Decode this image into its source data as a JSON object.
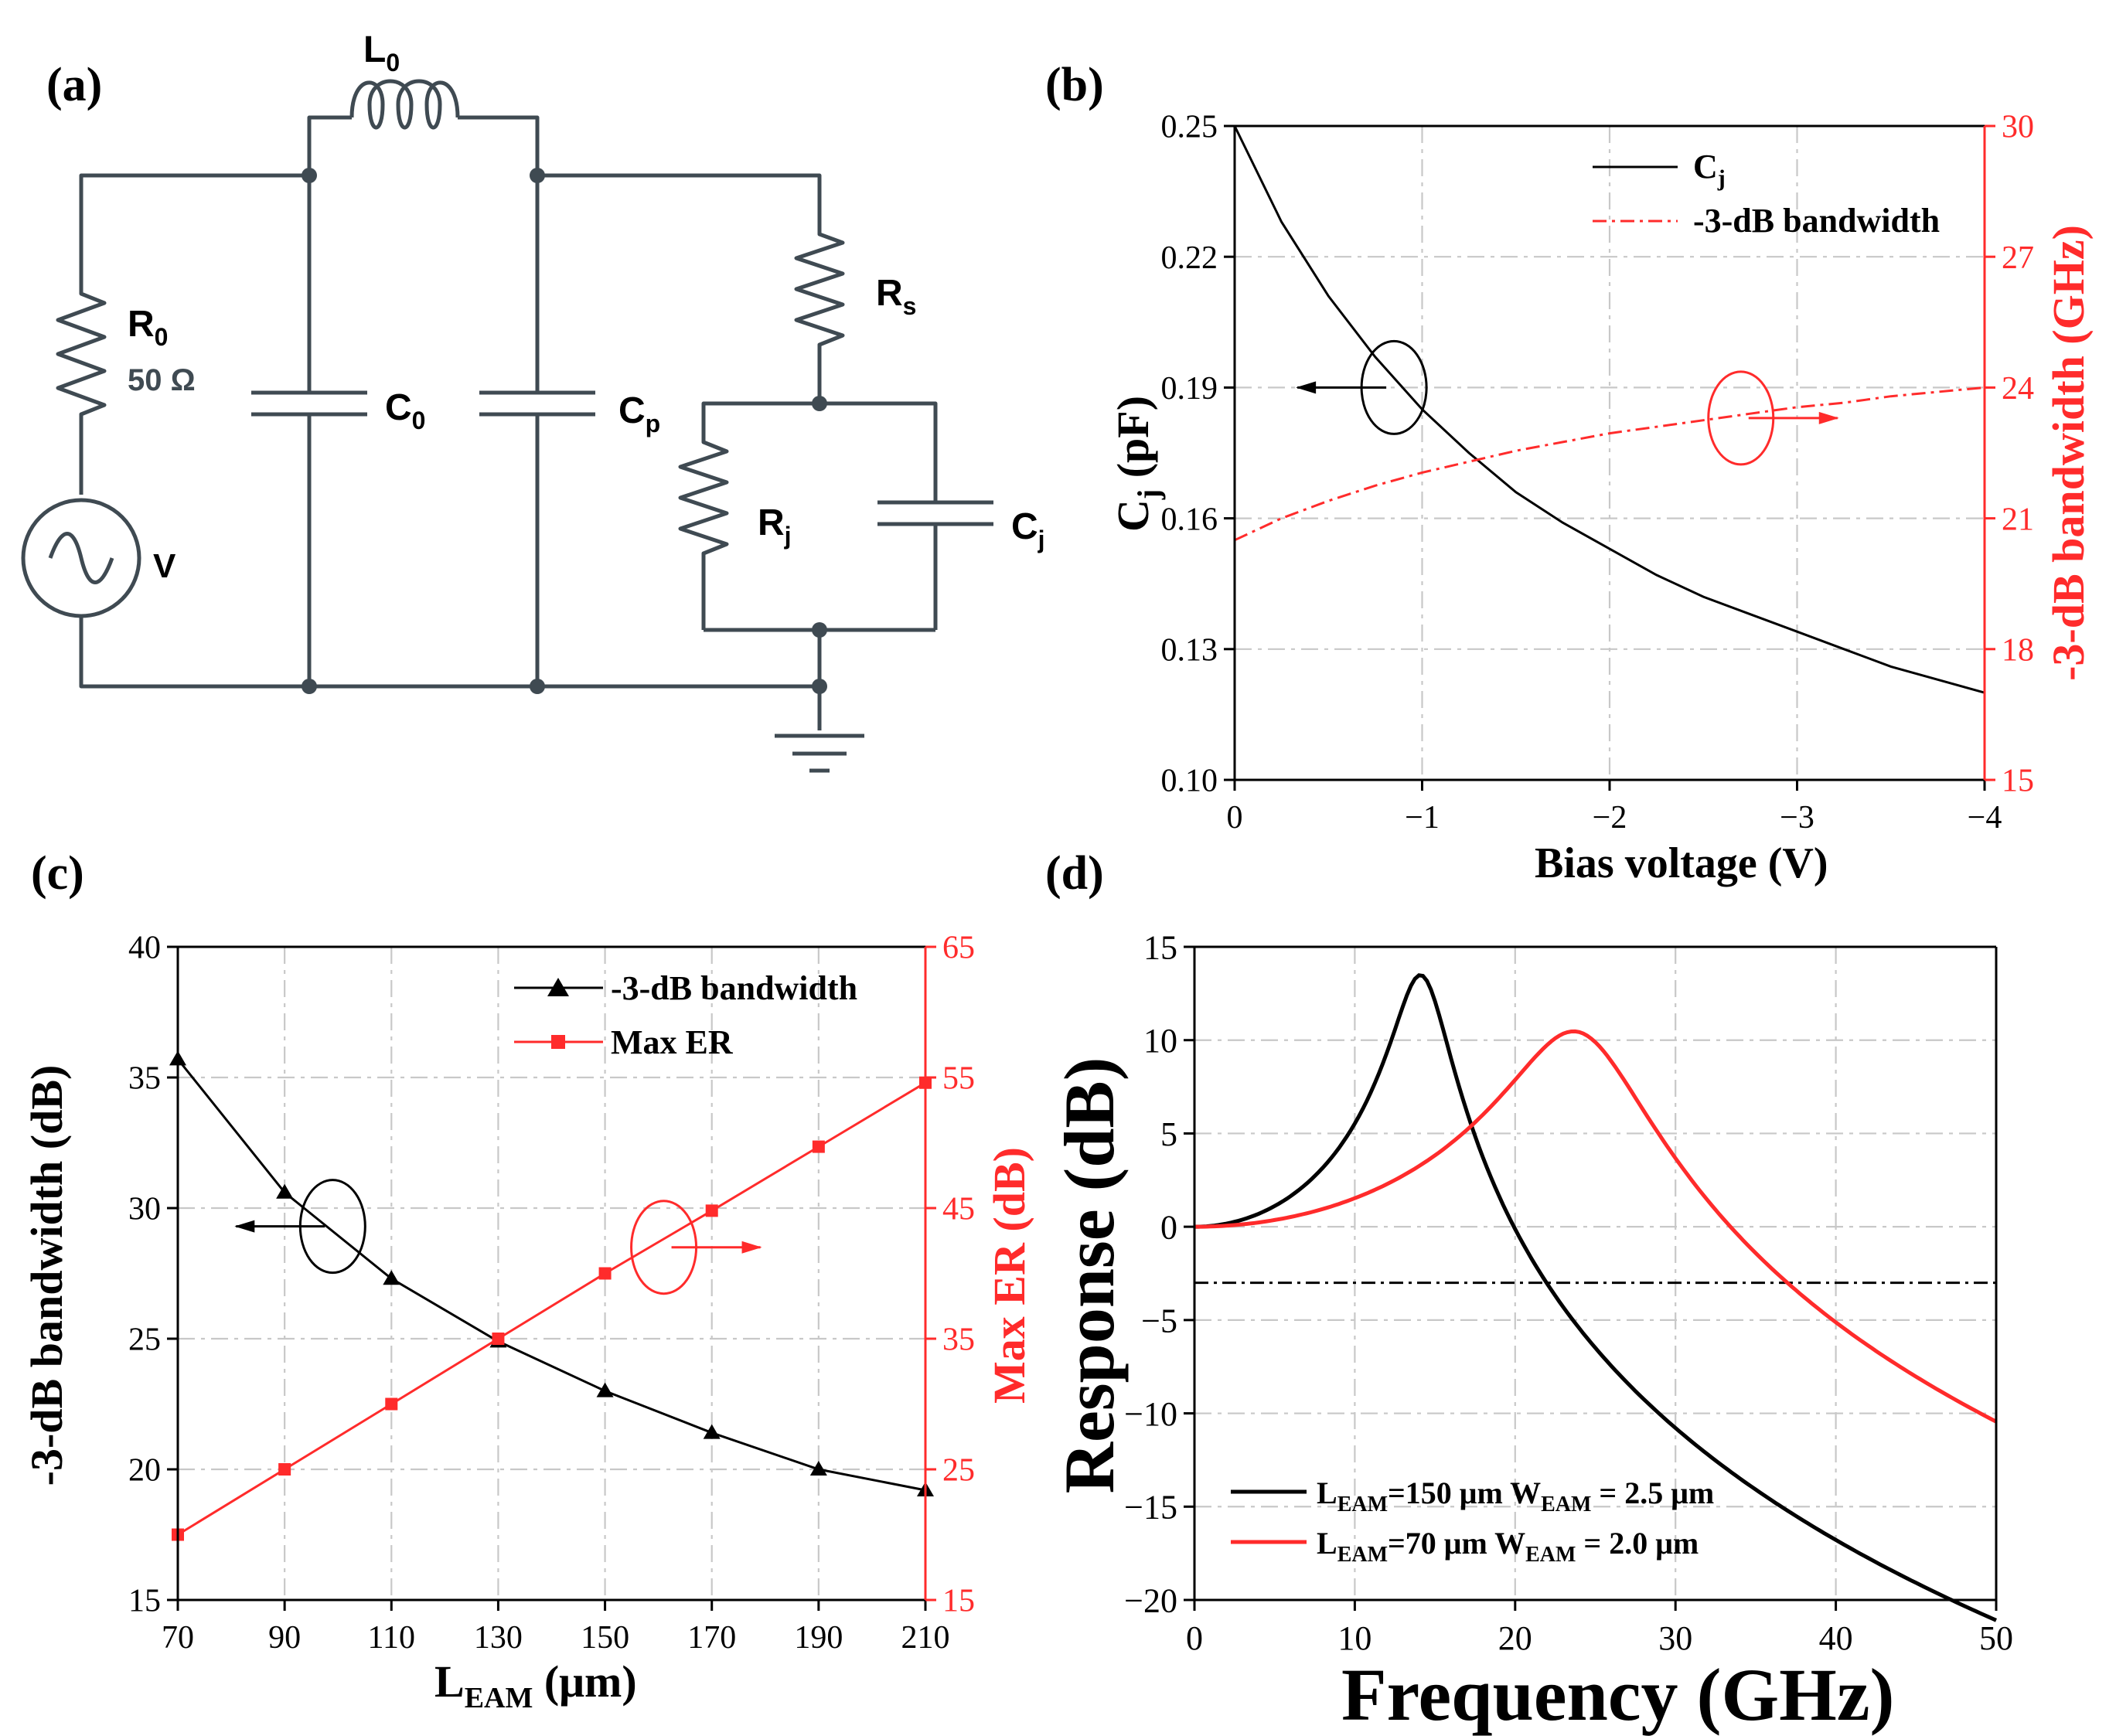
{
  "colors": {
    "black": "#000000",
    "red": "#ff2b2b",
    "wire": "#3f4a52",
    "grid": "#c8c8c8"
  },
  "panels": {
    "a": "(a)",
    "b": "(b)",
    "c": "(c)",
    "d": "(d)"
  },
  "circuit": {
    "L0": {
      "main": "L",
      "sub": "0"
    },
    "R0": {
      "main": "R",
      "sub": "0"
    },
    "R0_value": "50 Ω",
    "V": "V",
    "C0": {
      "main": "C",
      "sub": "0"
    },
    "Cp": {
      "main": "C",
      "sub": "p"
    },
    "Rs": {
      "main": "R",
      "sub": "s"
    },
    "Rj": {
      "main": "R",
      "sub": "j"
    },
    "Cj": {
      "main": "C",
      "sub": "j"
    }
  },
  "chart_data": [
    {
      "id": "b",
      "type": "line",
      "xlabel": "Bias voltage (V)",
      "ylabel": {
        "main": "C",
        "sub": "j",
        "rest": " (pF)"
      },
      "y2label": "-3-dB bandwidth (GHz)",
      "xlim": [
        0,
        -4
      ],
      "ylim": [
        0.1,
        0.25
      ],
      "y2lim": [
        15,
        30
      ],
      "xticks": [
        0,
        -1,
        -2,
        -3,
        -4
      ],
      "xtick_labels": [
        "0",
        "−1",
        "−2",
        "−3",
        "−4"
      ],
      "yticks": [
        0.1,
        0.13,
        0.16,
        0.19,
        0.22,
        0.25
      ],
      "ytick_labels": [
        "0.10",
        "0.13",
        "0.16",
        "0.19",
        "0.22",
        "0.25"
      ],
      "y2ticks": [
        15,
        18,
        21,
        24,
        27,
        30
      ],
      "y2tick_labels": [
        "15",
        "18",
        "21",
        "24",
        "27",
        "30"
      ],
      "legend_position": "top-right",
      "legend": [
        {
          "main": "C",
          "sub": "j"
        },
        {
          "main": "-3-dB bandwidth",
          "sub": ""
        }
      ],
      "series": [
        {
          "name": "Cj",
          "axis": "left",
          "style": "solid",
          "color": "#000000",
          "x": [
            0,
            -0.25,
            -0.5,
            -0.75,
            -1.0,
            -1.25,
            -1.5,
            -1.75,
            -2.0,
            -2.25,
            -2.5,
            -2.75,
            -3.0,
            -3.25,
            -3.5,
            -3.75,
            -4.0
          ],
          "y": [
            0.25,
            0.228,
            0.211,
            0.197,
            0.185,
            0.175,
            0.166,
            0.159,
            0.153,
            0.147,
            0.142,
            0.138,
            0.134,
            0.13,
            0.126,
            0.123,
            0.12
          ]
        },
        {
          "name": "-3-dB bandwidth",
          "axis": "right",
          "style": "dashdot",
          "color": "#ff2b2b",
          "x": [
            0,
            -0.25,
            -0.5,
            -0.75,
            -1.0,
            -1.25,
            -1.5,
            -1.75,
            -2.0,
            -2.25,
            -2.5,
            -2.75,
            -3.0,
            -3.25,
            -3.5,
            -3.75,
            -4.0
          ],
          "y": [
            20.5,
            21.0,
            21.4,
            21.75,
            22.05,
            22.3,
            22.55,
            22.75,
            22.95,
            23.1,
            23.25,
            23.4,
            23.55,
            23.65,
            23.8,
            23.9,
            24.0
          ]
        }
      ],
      "annotations": [
        {
          "ellipse_at": [
            -0.85,
            0.19
          ],
          "arrow_dir": "left"
        },
        {
          "ellipse_at": [
            -2.7,
            23.3
          ],
          "arrow_dir": "right",
          "axis": "right"
        }
      ]
    },
    {
      "id": "c",
      "type": "line",
      "xlabel": {
        "main": "L",
        "sub": "EAM",
        "rest": " (μm)"
      },
      "ylabel": "-3-dB bandwidth (dB)",
      "y2label": "Max ER (dB)",
      "xlim": [
        70,
        210
      ],
      "ylim": [
        15,
        40
      ],
      "y2lim": [
        15,
        65
      ],
      "xticks": [
        70,
        90,
        110,
        130,
        150,
        170,
        190,
        210
      ],
      "xtick_labels": [
        "70",
        "90",
        "110",
        "130",
        "150",
        "170",
        "190",
        "210"
      ],
      "yticks": [
        15,
        20,
        25,
        30,
        35,
        40
      ],
      "ytick_labels": [
        "15",
        "20",
        "25",
        "30",
        "35",
        "40"
      ],
      "y2ticks": [
        15,
        25,
        35,
        45,
        55,
        65
      ],
      "y2tick_labels": [
        "15",
        "25",
        "35",
        "45",
        "55",
        "65"
      ],
      "legend_position": "top-right",
      "legend": [
        "-3-dB bandwidth",
        "Max ER"
      ],
      "series": [
        {
          "name": "-3-dB bandwidth",
          "axis": "left",
          "marker": "triangle",
          "color": "#000000",
          "x": [
            70,
            90,
            110,
            130,
            150,
            170,
            190,
            210
          ],
          "y": [
            35.7,
            30.6,
            27.3,
            24.9,
            23.0,
            21.4,
            20.0,
            19.2
          ]
        },
        {
          "name": "Max ER",
          "axis": "right",
          "marker": "square",
          "color": "#ff2b2b",
          "x": [
            70,
            90,
            110,
            130,
            150,
            170,
            190,
            210
          ],
          "y": [
            20.0,
            25.0,
            30.0,
            35.0,
            40.0,
            44.8,
            49.7,
            54.6
          ]
        }
      ],
      "annotations": [
        {
          "ellipse_at": [
            99,
            29.3
          ],
          "arrow_dir": "left"
        },
        {
          "ellipse_at": [
            161,
            42.0
          ],
          "arrow_dir": "right",
          "axis": "right"
        }
      ]
    },
    {
      "id": "d",
      "type": "line",
      "xlabel": "Frequency (GHz)",
      "ylabel": "Response (dB)",
      "xlim": [
        0,
        50
      ],
      "ylim": [
        -20,
        15
      ],
      "xticks": [
        0,
        10,
        20,
        30,
        40,
        50
      ],
      "xtick_labels": [
        "0",
        "10",
        "20",
        "30",
        "40",
        "50"
      ],
      "yticks": [
        -20,
        -15,
        -10,
        -5,
        0,
        5,
        10,
        15
      ],
      "ytick_labels": [
        "−20",
        "−15",
        "−10",
        "−5",
        "0",
        "5",
        "10",
        "15"
      ],
      "reference_line": {
        "y": -3,
        "style": "dashdot",
        "color": "#000000"
      },
      "legend_position": "bottom-left",
      "legend": [
        [
          {
            "main": "L",
            "sub": "EAM"
          },
          {
            "main": "=150 μm W",
            "sub": "EAM"
          },
          {
            "main": " = 2.5 μm",
            "sub": ""
          }
        ],
        [
          {
            "main": "L",
            "sub": "EAM"
          },
          {
            "main": "=70 μm W",
            "sub": "EAM"
          },
          {
            "main": " = 2.0 μm",
            "sub": ""
          }
        ]
      ],
      "series": [
        {
          "name": "LEAM=150 μm WEAM = 2.5 μm",
          "color": "#000000",
          "model": {
            "f0": 14.25,
            "Q": 4.7
          }
        },
        {
          "name": "LEAM=70 μm WEAM = 2.0 μm",
          "color": "#ff2b2b",
          "model": {
            "f0": 24.2,
            "Q": 3.3
          }
        }
      ]
    }
  ]
}
